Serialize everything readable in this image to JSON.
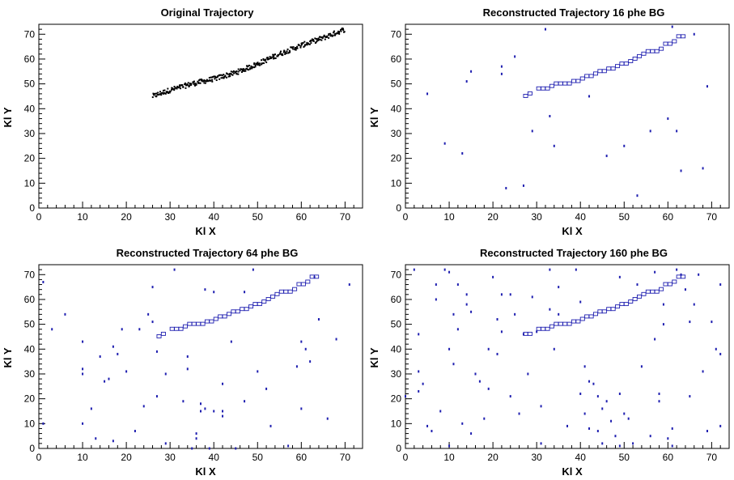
{
  "figure": {
    "background": "#ffffff",
    "axis_color": "#000000",
    "marker_black": "#000000",
    "marker_blue": "#1f1fb0"
  },
  "chart_data": [
    {
      "type": "scatter",
      "title": "Original Trajectory",
      "xlabel": "Kl X",
      "ylabel": "Kl Y",
      "xlim": [
        0,
        74
      ],
      "ylim": [
        0,
        74
      ],
      "xticks": [
        0,
        10,
        20,
        30,
        40,
        50,
        60,
        70
      ],
      "yticks": [
        0,
        10,
        20,
        30,
        40,
        50,
        60,
        70
      ],
      "grid": false,
      "marker_style": "dot",
      "marker_color": "#000000",
      "trajectory": {
        "x_start": 26,
        "x_end": 70,
        "knots_x": [
          26,
          30,
          35,
          40,
          45,
          50,
          55,
          60,
          65,
          70
        ],
        "knots_y": [
          45,
          47.5,
          50,
          52,
          54.5,
          58,
          62,
          65.5,
          68.5,
          72
        ],
        "points_per_unit": 8,
        "scatter": 1.0
      },
      "boxes": [],
      "background_points": []
    },
    {
      "type": "scatter",
      "title": "Reconstructed Trajectory 16 phe BG",
      "xlabel": "Kl X",
      "ylabel": "Kl Y",
      "xlim": [
        0,
        74
      ],
      "ylim": [
        0,
        74
      ],
      "xticks": [
        0,
        10,
        20,
        30,
        40,
        50,
        60,
        70
      ],
      "yticks": [
        0,
        10,
        20,
        30,
        40,
        50,
        60,
        70
      ],
      "grid": false,
      "marker_style": "box",
      "marker_color": "#1f1fb0",
      "trajectory": null,
      "boxes": [
        [
          27,
          45
        ],
        [
          28,
          46
        ],
        [
          30,
          48
        ],
        [
          31,
          48
        ],
        [
          32,
          48
        ],
        [
          33,
          49
        ],
        [
          34,
          50
        ],
        [
          35,
          50
        ],
        [
          36,
          50
        ],
        [
          37,
          50
        ],
        [
          38,
          51
        ],
        [
          39,
          51
        ],
        [
          40,
          52
        ],
        [
          41,
          53
        ],
        [
          42,
          53
        ],
        [
          43,
          54
        ],
        [
          44,
          55
        ],
        [
          45,
          55
        ],
        [
          46,
          56
        ],
        [
          47,
          56
        ],
        [
          48,
          57
        ],
        [
          49,
          58
        ],
        [
          50,
          58
        ],
        [
          51,
          59
        ],
        [
          52,
          60
        ],
        [
          53,
          61
        ],
        [
          54,
          62
        ],
        [
          55,
          63
        ],
        [
          56,
          63
        ],
        [
          57,
          63
        ],
        [
          58,
          64
        ],
        [
          59,
          66
        ],
        [
          60,
          66
        ],
        [
          61,
          67
        ],
        [
          62,
          69
        ],
        [
          63,
          69
        ]
      ],
      "background_points": [
        [
          5,
          46
        ],
        [
          9,
          26
        ],
        [
          13,
          22
        ],
        [
          14,
          51
        ],
        [
          15,
          55
        ],
        [
          22,
          57
        ],
        [
          22,
          54
        ],
        [
          23,
          8
        ],
        [
          25,
          61
        ],
        [
          27,
          9
        ],
        [
          29,
          31
        ],
        [
          32,
          72
        ],
        [
          33,
          37
        ],
        [
          34,
          25
        ],
        [
          42,
          45
        ],
        [
          46,
          21
        ],
        [
          50,
          25
        ],
        [
          53,
          5
        ],
        [
          56,
          31
        ],
        [
          60,
          36
        ],
        [
          61,
          73
        ],
        [
          62,
          31
        ],
        [
          63,
          15
        ],
        [
          66,
          70
        ],
        [
          68,
          16
        ],
        [
          69,
          49
        ]
      ]
    },
    {
      "type": "scatter",
      "title": "Reconstructed Trajectory 64 phe BG",
      "xlabel": "Kl X",
      "ylabel": "Kl Y",
      "xlim": [
        0,
        74
      ],
      "ylim": [
        0,
        74
      ],
      "xticks": [
        0,
        10,
        20,
        30,
        40,
        50,
        60,
        70
      ],
      "yticks": [
        0,
        10,
        20,
        30,
        40,
        50,
        60,
        70
      ],
      "grid": false,
      "marker_style": "box",
      "marker_color": "#1f1fb0",
      "trajectory": null,
      "boxes": [
        [
          27,
          45
        ],
        [
          28,
          46
        ],
        [
          30,
          48
        ],
        [
          31,
          48
        ],
        [
          32,
          48
        ],
        [
          33,
          49
        ],
        [
          34,
          50
        ],
        [
          35,
          50
        ],
        [
          36,
          50
        ],
        [
          37,
          50
        ],
        [
          38,
          51
        ],
        [
          39,
          51
        ],
        [
          40,
          52
        ],
        [
          41,
          53
        ],
        [
          42,
          53
        ],
        [
          43,
          54
        ],
        [
          44,
          55
        ],
        [
          45,
          55
        ],
        [
          46,
          56
        ],
        [
          47,
          56
        ],
        [
          48,
          57
        ],
        [
          49,
          58
        ],
        [
          50,
          58
        ],
        [
          51,
          59
        ],
        [
          52,
          60
        ],
        [
          53,
          61
        ],
        [
          54,
          62
        ],
        [
          55,
          63
        ],
        [
          56,
          63
        ],
        [
          57,
          63
        ],
        [
          58,
          64
        ],
        [
          59,
          66
        ],
        [
          60,
          66
        ],
        [
          61,
          67
        ],
        [
          62,
          69
        ],
        [
          63,
          69
        ]
      ],
      "background_points": [
        [
          1,
          67
        ],
        [
          1,
          10
        ],
        [
          3,
          48
        ],
        [
          6,
          54
        ],
        [
          10,
          43
        ],
        [
          10,
          32
        ],
        [
          10,
          30
        ],
        [
          10,
          10
        ],
        [
          12,
          16
        ],
        [
          13,
          4
        ],
        [
          14,
          37
        ],
        [
          15,
          27
        ],
        [
          16,
          28
        ],
        [
          17,
          41
        ],
        [
          17,
          3
        ],
        [
          18,
          38
        ],
        [
          19,
          48
        ],
        [
          20,
          31
        ],
        [
          22,
          7
        ],
        [
          23,
          48
        ],
        [
          24,
          17
        ],
        [
          25,
          54
        ],
        [
          26,
          65
        ],
        [
          26,
          51
        ],
        [
          27,
          39
        ],
        [
          27,
          21
        ],
        [
          29,
          30
        ],
        [
          29,
          2
        ],
        [
          31,
          72
        ],
        [
          33,
          19
        ],
        [
          34,
          37
        ],
        [
          34,
          32
        ],
        [
          35,
          0
        ],
        [
          36,
          6
        ],
        [
          36,
          4
        ],
        [
          37,
          18
        ],
        [
          37,
          15
        ],
        [
          38,
          16
        ],
        [
          38,
          64
        ],
        [
          39,
          0
        ],
        [
          40,
          63
        ],
        [
          40,
          15
        ],
        [
          42,
          26
        ],
        [
          42,
          15
        ],
        [
          42,
          13
        ],
        [
          44,
          43
        ],
        [
          45,
          0
        ],
        [
          47,
          63
        ],
        [
          47,
          19
        ],
        [
          49,
          72
        ],
        [
          50,
          31
        ],
        [
          52,
          24
        ],
        [
          53,
          9
        ],
        [
          57,
          1
        ],
        [
          59,
          33
        ],
        [
          60,
          16
        ],
        [
          60,
          43
        ],
        [
          61,
          40
        ],
        [
          62,
          35
        ],
        [
          63,
          69
        ],
        [
          64,
          52
        ],
        [
          66,
          12
        ],
        [
          68,
          44
        ],
        [
          71,
          66
        ]
      ]
    },
    {
      "type": "scatter",
      "title": "Reconstructed Trajectory 160 phe BG",
      "xlabel": "Kl X",
      "ylabel": "Kl Y",
      "xlim": [
        0,
        74
      ],
      "ylim": [
        0,
        74
      ],
      "xticks": [
        0,
        10,
        20,
        30,
        40,
        50,
        60,
        70
      ],
      "yticks": [
        0,
        10,
        20,
        30,
        40,
        50,
        60,
        70
      ],
      "grid": false,
      "marker_style": "box",
      "marker_color": "#1f1fb0",
      "trajectory": null,
      "boxes": [
        [
          27,
          46
        ],
        [
          28,
          46
        ],
        [
          30,
          48
        ],
        [
          31,
          48
        ],
        [
          32,
          48
        ],
        [
          33,
          49
        ],
        [
          34,
          50
        ],
        [
          35,
          50
        ],
        [
          36,
          50
        ],
        [
          37,
          50
        ],
        [
          38,
          51
        ],
        [
          39,
          51
        ],
        [
          40,
          52
        ],
        [
          41,
          53
        ],
        [
          42,
          53
        ],
        [
          43,
          54
        ],
        [
          44,
          55
        ],
        [
          45,
          55
        ],
        [
          46,
          56
        ],
        [
          47,
          56
        ],
        [
          48,
          57
        ],
        [
          49,
          58
        ],
        [
          50,
          58
        ],
        [
          51,
          59
        ],
        [
          52,
          60
        ],
        [
          53,
          61
        ],
        [
          54,
          62
        ],
        [
          55,
          63
        ],
        [
          56,
          63
        ],
        [
          57,
          63
        ],
        [
          58,
          64
        ],
        [
          59,
          66
        ],
        [
          60,
          66
        ],
        [
          61,
          67
        ],
        [
          62,
          69
        ],
        [
          63,
          69
        ]
      ],
      "background_points": [
        [
          0,
          21
        ],
        [
          2,
          72
        ],
        [
          3,
          46
        ],
        [
          3,
          31
        ],
        [
          3,
          23
        ],
        [
          4,
          26
        ],
        [
          5,
          9
        ],
        [
          6,
          7
        ],
        [
          7,
          60
        ],
        [
          7,
          66
        ],
        [
          8,
          15
        ],
        [
          9,
          72
        ],
        [
          10,
          1
        ],
        [
          10,
          40
        ],
        [
          10,
          71
        ],
        [
          11,
          54
        ],
        [
          11,
          34
        ],
        [
          12,
          48
        ],
        [
          12,
          66
        ],
        [
          13,
          10
        ],
        [
          14,
          62
        ],
        [
          14,
          58
        ],
        [
          15,
          6
        ],
        [
          15,
          55
        ],
        [
          16,
          30
        ],
        [
          17,
          27
        ],
        [
          18,
          12
        ],
        [
          19,
          24
        ],
        [
          19,
          40
        ],
        [
          20,
          69
        ],
        [
          21,
          52
        ],
        [
          21,
          38
        ],
        [
          22,
          47
        ],
        [
          22,
          62
        ],
        [
          24,
          62
        ],
        [
          24,
          21
        ],
        [
          25,
          54
        ],
        [
          26,
          14
        ],
        [
          27,
          46
        ],
        [
          28,
          30
        ],
        [
          29,
          61
        ],
        [
          30,
          47
        ],
        [
          31,
          17
        ],
        [
          31,
          2
        ],
        [
          33,
          72
        ],
        [
          33,
          56
        ],
        [
          34,
          40
        ],
        [
          35,
          65
        ],
        [
          35,
          54
        ],
        [
          37,
          9
        ],
        [
          39,
          72
        ],
        [
          40,
          59
        ],
        [
          40,
          22
        ],
        [
          41,
          33
        ],
        [
          41,
          14
        ],
        [
          42,
          27
        ],
        [
          42,
          8
        ],
        [
          43,
          26
        ],
        [
          44,
          21
        ],
        [
          44,
          7
        ],
        [
          45,
          2
        ],
        [
          45,
          16
        ],
        [
          46,
          19
        ],
        [
          47,
          11
        ],
        [
          48,
          5
        ],
        [
          49,
          1
        ],
        [
          49,
          22
        ],
        [
          49,
          69
        ],
        [
          50,
          14
        ],
        [
          51,
          12
        ],
        [
          52,
          2
        ],
        [
          53,
          66
        ],
        [
          54,
          33
        ],
        [
          56,
          5
        ],
        [
          57,
          71
        ],
        [
          57,
          44
        ],
        [
          58,
          22
        ],
        [
          58,
          19
        ],
        [
          59,
          58
        ],
        [
          59,
          50
        ],
        [
          60,
          4
        ],
        [
          61,
          1
        ],
        [
          61,
          8
        ],
        [
          62,
          72
        ],
        [
          63,
          70
        ],
        [
          64,
          64
        ],
        [
          65,
          51
        ],
        [
          65,
          21
        ],
        [
          66,
          58
        ],
        [
          67,
          70
        ],
        [
          68,
          31
        ],
        [
          69,
          7
        ],
        [
          70,
          51
        ],
        [
          71,
          40
        ],
        [
          72,
          66
        ],
        [
          72,
          38
        ],
        [
          72,
          9
        ]
      ]
    }
  ]
}
